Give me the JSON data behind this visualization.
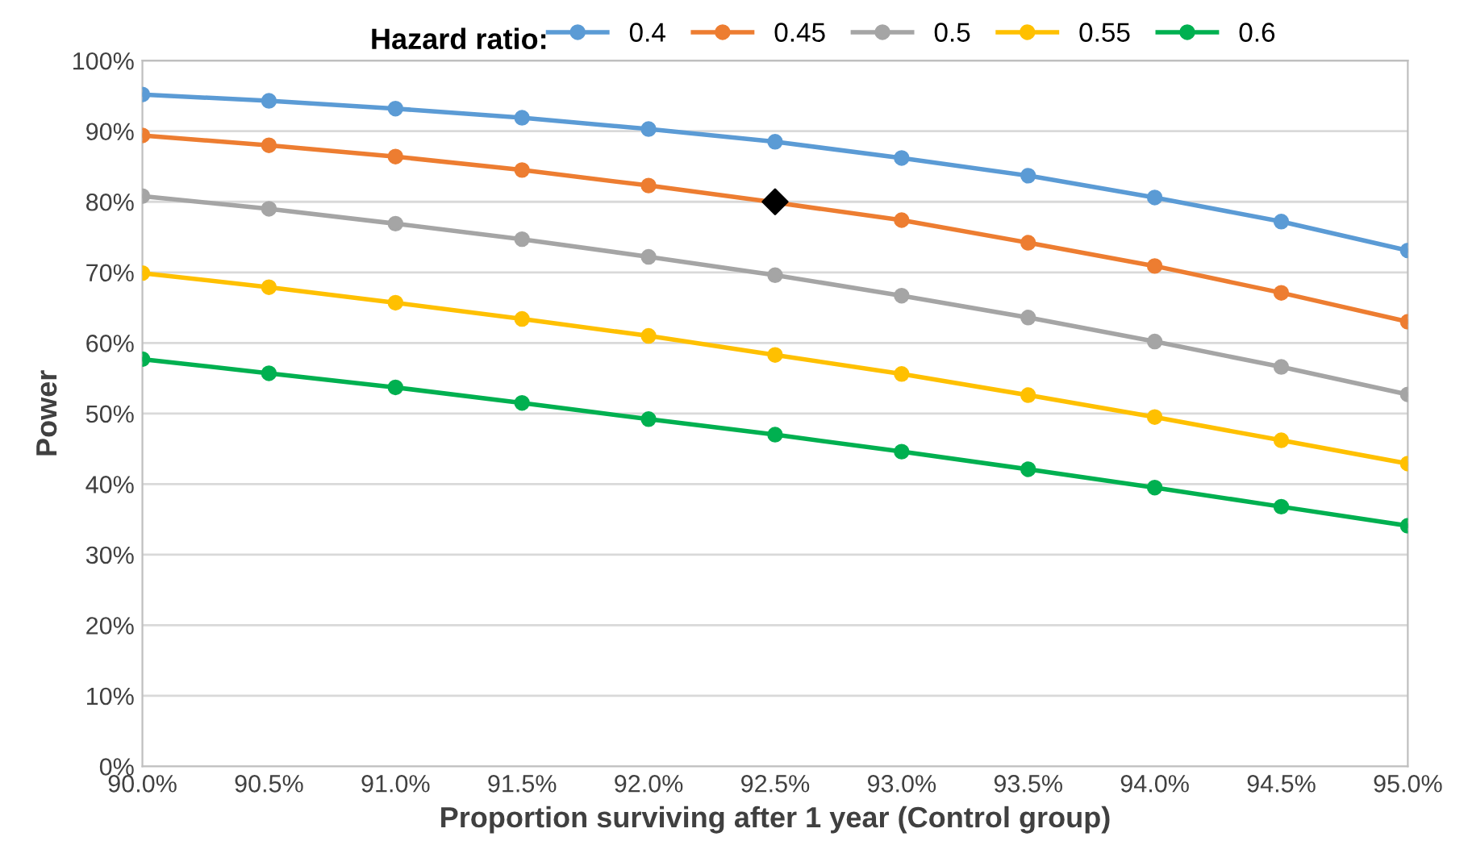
{
  "chart_data": {
    "type": "line",
    "xlabel": "Proportion surviving after 1 year (Control group)",
    "ylabel": "Power",
    "legend_title": "Hazard ratio:",
    "x": [
      90.0,
      90.5,
      91.0,
      91.5,
      92.0,
      92.5,
      93.0,
      93.5,
      94.0,
      94.5,
      95.0
    ],
    "series": [
      {
        "name": "0.4",
        "color": "#5b9bd5",
        "values": [
          95.2,
          94.3,
          93.2,
          91.9,
          90.3,
          88.5,
          86.2,
          83.7,
          80.6,
          77.2,
          73.1
        ]
      },
      {
        "name": "0.45",
        "color": "#ed7d31",
        "values": [
          89.4,
          88.0,
          86.4,
          84.5,
          82.3,
          79.9,
          77.4,
          74.2,
          70.9,
          67.1,
          63.0
        ]
      },
      {
        "name": "0.5",
        "color": "#a5a5a5",
        "values": [
          80.8,
          79.0,
          76.9,
          74.7,
          72.2,
          69.6,
          66.7,
          63.6,
          60.2,
          56.6,
          52.7
        ]
      },
      {
        "name": "0.55",
        "color": "#ffc000",
        "values": [
          69.9,
          67.9,
          65.7,
          63.4,
          61.0,
          58.3,
          55.6,
          52.6,
          49.5,
          46.2,
          42.9
        ]
      },
      {
        "name": "0.6",
        "color": "#00b050",
        "values": [
          57.7,
          55.7,
          53.7,
          51.5,
          49.2,
          47.0,
          44.6,
          42.1,
          39.5,
          36.8,
          34.1
        ]
      },
      {
        "type": "scatter",
        "marker": "diamond",
        "color": "#000000",
        "x": [
          92.5
        ],
        "values": [
          80.0
        ]
      }
    ],
    "xlim": [
      90,
      95
    ],
    "xticks": [
      {
        "value": 90,
        "label": "90.0%"
      },
      {
        "value": 90.5,
        "label": "90.5%"
      },
      {
        "value": 91,
        "label": "91.0%"
      },
      {
        "value": 91.5,
        "label": "91.5%"
      },
      {
        "value": 92,
        "label": "92.0%"
      },
      {
        "value": 92.5,
        "label": "92.5%"
      },
      {
        "value": 93,
        "label": "93.0%"
      },
      {
        "value": 93.5,
        "label": "93.5%"
      },
      {
        "value": 94,
        "label": "94.0%"
      },
      {
        "value": 94.5,
        "label": "94.5%"
      },
      {
        "value": 95,
        "label": "95.0%"
      }
    ],
    "ylim": [
      0,
      100
    ],
    "yticks": [
      {
        "value": 0,
        "label": "0%"
      },
      {
        "value": 10,
        "label": "10%"
      },
      {
        "value": 20,
        "label": "20%"
      },
      {
        "value": 30,
        "label": "30%"
      },
      {
        "value": 40,
        "label": "40%"
      },
      {
        "value": 50,
        "label": "50%"
      },
      {
        "value": 60,
        "label": "60%"
      },
      {
        "value": 70,
        "label": "70%"
      },
      {
        "value": 80,
        "label": "80%"
      },
      {
        "value": 90,
        "label": "90%"
      },
      {
        "value": 100,
        "label": "100%"
      }
    ],
    "grid": "y",
    "legend": "top",
    "marker": "circle",
    "line_style": "solid"
  }
}
